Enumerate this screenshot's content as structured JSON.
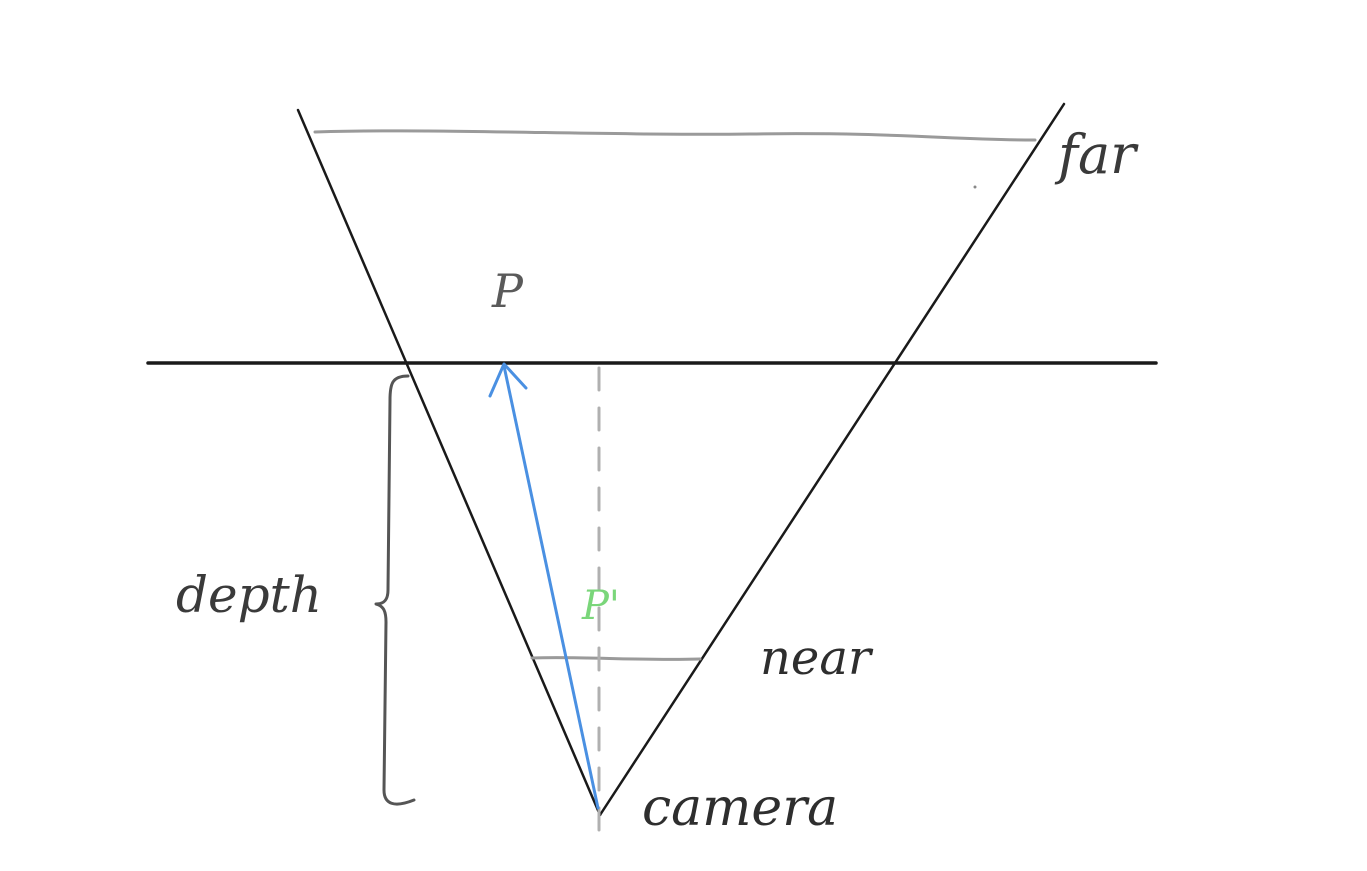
{
  "labels": {
    "far": "far",
    "p": "P",
    "p_prime": "P'",
    "near": "near",
    "depth": "depth",
    "camera": "camera"
  },
  "colors": {
    "frustum": "#1a1a1a",
    "plane": "#1a1a1a",
    "far_line": "#9a9a9a",
    "near_line": "#9a9a9a",
    "ray": "#4a90e2",
    "projection_label": "#7ad67a",
    "dashed_guide": "#b0b0b0",
    "brace": "#555555"
  }
}
